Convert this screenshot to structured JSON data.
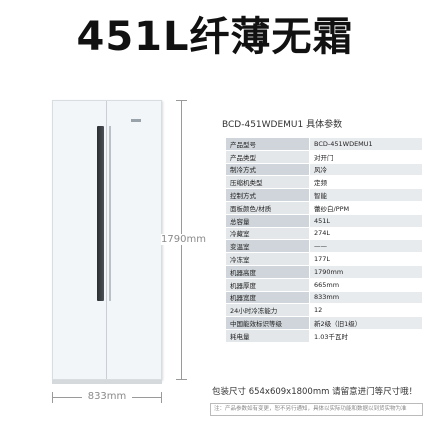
{
  "headline": "451L纤薄无霜",
  "dimensions": {
    "height": "1790mm",
    "width": "833mm"
  },
  "spec": {
    "title": "BCD-451WDEMU1 具体参数",
    "rows": [
      {
        "k": "产品型号",
        "v": "BCD-451WDEMU1"
      },
      {
        "k": "产品类型",
        "v": "对开门"
      },
      {
        "k": "制冷方式",
        "v": "风冷"
      },
      {
        "k": "压缩机类型",
        "v": "定频"
      },
      {
        "k": "控制方式",
        "v": "智能"
      },
      {
        "k": "面板颜色/材质",
        "v": "蕾纱白/PPM"
      },
      {
        "k": "总容量",
        "v": "451L"
      },
      {
        "k": "冷藏室",
        "v": "274L"
      },
      {
        "k": "变温室",
        "v": "——"
      },
      {
        "k": "冷冻室",
        "v": "177L"
      },
      {
        "k": "机器高度",
        "v": "1790mm"
      },
      {
        "k": "机器厚度",
        "v": "665mm"
      },
      {
        "k": "机器宽度",
        "v": "833mm"
      },
      {
        "k": "24小时冷冻能力",
        "v": "12"
      },
      {
        "k": "中国能效标识等级",
        "v": "新2级（旧1级）"
      },
      {
        "k": "耗电量",
        "v": "1.03千瓦时"
      }
    ]
  },
  "package": "包装尺寸 654x609x1800mm 请留意进门等尺寸哦！",
  "note": "注：产品参数如有变更，恕不另行通知，具体以实际功能和数据以到货实物为准"
}
